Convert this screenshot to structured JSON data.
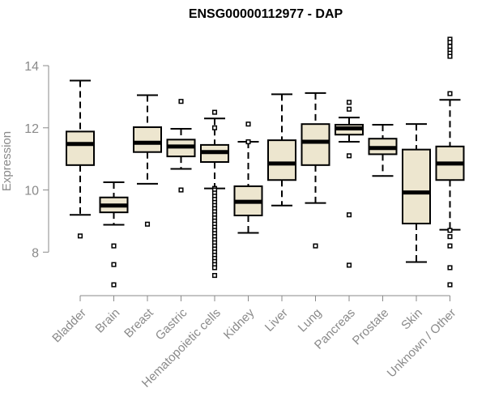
{
  "chart_data": {
    "type": "boxplot",
    "title": "ENSG00000112977 - DAP",
    "ylabel": "Expression",
    "xlabel": "",
    "ylim": [
      6.6,
      15.2
    ],
    "yticks": [
      8,
      10,
      12,
      14
    ],
    "box_color": "#ede6cf",
    "categories": [
      "Bladder",
      "Brain",
      "Breast",
      "Gastric",
      "Hematopoietic cells",
      "Kidney",
      "Liver",
      "Lung",
      "Pancreas",
      "Prostate",
      "Skin",
      "Unknown / Other"
    ],
    "boxes": [
      {
        "whisker_low": 9.2,
        "q1": 10.8,
        "median": 11.48,
        "q3": 11.88,
        "whisker_high": 13.52,
        "outliers": [
          8.52
        ]
      },
      {
        "whisker_low": 8.88,
        "q1": 9.28,
        "median": 9.5,
        "q3": 9.76,
        "whisker_high": 10.25,
        "outliers": [
          8.2,
          7.6,
          6.95
        ]
      },
      {
        "whisker_low": 10.2,
        "q1": 11.22,
        "median": 11.52,
        "q3": 12.02,
        "whisker_high": 13.05,
        "outliers": [
          8.9
        ]
      },
      {
        "whisker_low": 10.68,
        "q1": 11.08,
        "median": 11.4,
        "q3": 11.62,
        "whisker_high": 11.97,
        "outliers": [
          12.85,
          10.0
        ]
      },
      {
        "whisker_low": 10.05,
        "q1": 10.9,
        "median": 11.22,
        "q3": 11.45,
        "whisker_high": 12.3,
        "outliers": [
          12.5,
          12.0,
          10.05,
          10.0,
          9.9,
          9.8,
          9.7,
          9.6,
          9.5,
          9.4,
          9.3,
          9.2,
          9.1,
          9.0,
          8.9,
          8.8,
          8.7,
          8.6,
          8.5,
          8.4,
          8.3,
          8.2,
          8.1,
          8.0,
          7.9,
          7.8,
          7.7,
          7.6,
          7.5,
          7.25
        ]
      },
      {
        "whisker_low": 8.62,
        "q1": 9.18,
        "median": 9.62,
        "q3": 10.12,
        "whisker_high": 11.55,
        "outliers": [
          12.12,
          11.55
        ]
      },
      {
        "whisker_low": 9.5,
        "q1": 10.32,
        "median": 10.85,
        "q3": 11.6,
        "whisker_high": 13.08,
        "outliers": []
      },
      {
        "whisker_low": 9.58,
        "q1": 10.8,
        "median": 11.55,
        "q3": 12.12,
        "whisker_high": 13.12,
        "outliers": [
          8.2
        ]
      },
      {
        "whisker_low": 11.55,
        "q1": 11.78,
        "median": 11.98,
        "q3": 12.1,
        "whisker_high": 12.33,
        "outliers": [
          12.82,
          12.6,
          11.1,
          9.2,
          7.58
        ]
      },
      {
        "whisker_low": 10.45,
        "q1": 11.15,
        "median": 11.35,
        "q3": 11.65,
        "whisker_high": 12.1,
        "outliers": []
      },
      {
        "whisker_low": 7.68,
        "q1": 8.92,
        "median": 9.92,
        "q3": 11.3,
        "whisker_high": 12.12,
        "outliers": []
      },
      {
        "whisker_low": 8.72,
        "q1": 10.32,
        "median": 10.85,
        "q3": 11.4,
        "whisker_high": 12.9,
        "outliers": [
          14.85,
          14.75,
          14.62,
          14.5,
          14.4,
          14.3,
          13.1,
          8.7,
          8.5,
          8.2,
          7.5,
          6.95
        ]
      }
    ]
  }
}
